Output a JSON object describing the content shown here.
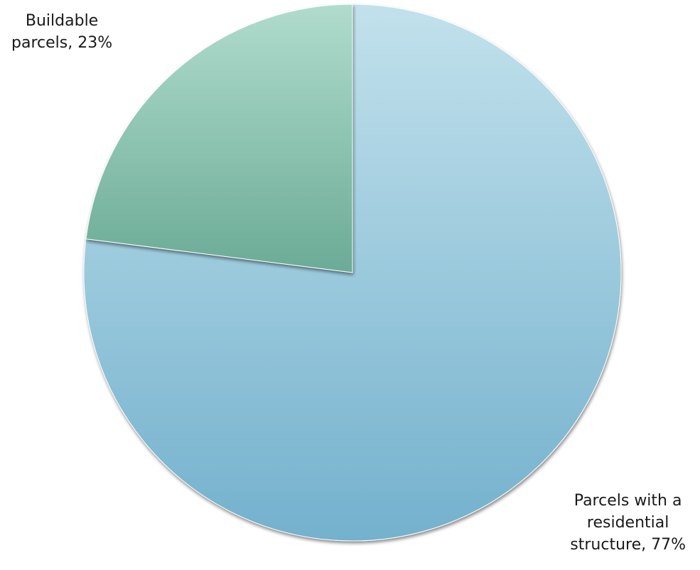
{
  "chart_data": {
    "type": "pie",
    "title": "",
    "categories": [
      "Parcels with a residential structure",
      "Buildable parcels"
    ],
    "values": [
      77,
      23
    ],
    "unit": "%",
    "colors": [
      [
        "#c2e1ec",
        "#73b1cd"
      ],
      [
        "#b0dccd",
        "#6bab96"
      ]
    ],
    "slice_edge_color": "#ffffff",
    "data_labels": [
      [
        "Parcels with a",
        "residential",
        "structure, 77%"
      ],
      [
        "Buildable",
        "parcels, 23%"
      ]
    ],
    "legend": "none"
  }
}
